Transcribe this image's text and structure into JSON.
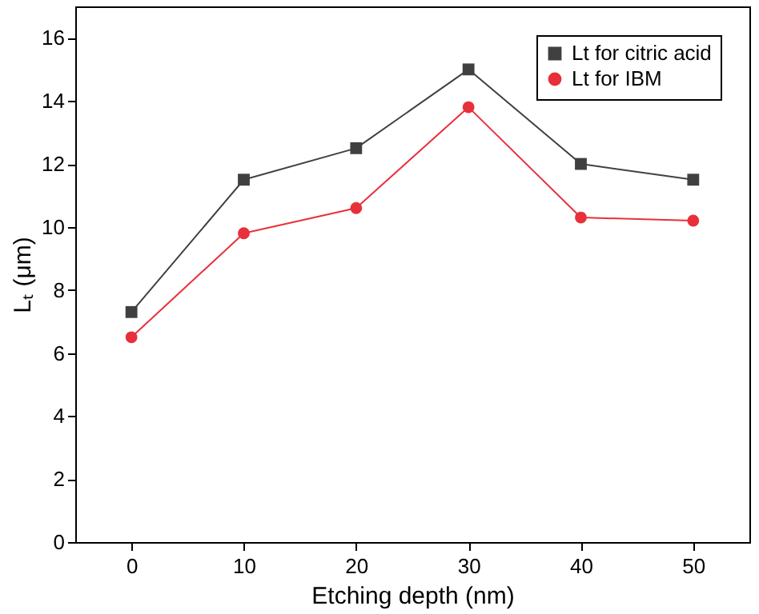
{
  "chart_data": {
    "type": "line",
    "xlabel": "Etching depth (nm)",
    "ylabel": "Lₜ (μm)",
    "x": [
      0,
      10,
      20,
      30,
      40,
      50
    ],
    "series": [
      {
        "name": "Lt for citric acid",
        "color": "#404040",
        "marker": "square",
        "values": [
          7.3,
          11.5,
          12.5,
          15,
          12,
          11.5
        ]
      },
      {
        "name": "Lt for IBM",
        "color": "#e8303a",
        "marker": "circle",
        "values": [
          6.5,
          9.8,
          10.6,
          13.8,
          10.3,
          10.2
        ]
      }
    ],
    "xlim": [
      -5,
      55
    ],
    "xticks": [
      0,
      10,
      20,
      30,
      40,
      50
    ],
    "ylim": [
      0,
      17
    ],
    "yticks": [
      0,
      2,
      4,
      6,
      8,
      10,
      12,
      14,
      16
    ],
    "grid": false,
    "legend": "top right",
    "line_style": "solid"
  }
}
